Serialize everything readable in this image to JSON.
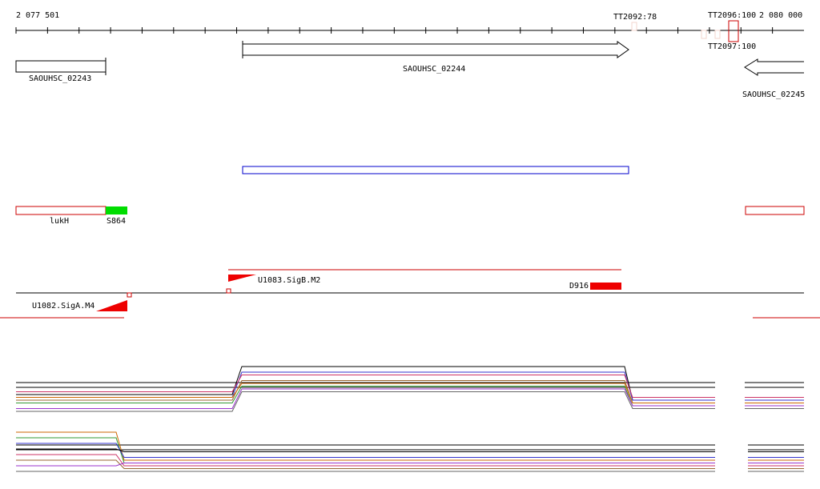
{
  "ruler": {
    "start": "2 077 501",
    "end": "2 080 000"
  },
  "terminators": [
    "TT2092:78",
    "TT2096:100",
    "TT2097:100"
  ],
  "genes": [
    "SAOUHSC_02243",
    "SAOUHSC_02244",
    "SAOUHSC_02245"
  ],
  "features": [
    "lukH",
    "S864"
  ],
  "promoters": [
    "U1083.SigB.M2",
    "D916",
    "U1082.SigA.M4"
  ],
  "expression_tracks": [
    {
      "series": [
        {
          "color": "#000000",
          "values": [
            2,
            12,
            0
          ]
        },
        {
          "color": "#3333cc",
          "values": [
            1,
            10,
            0
          ]
        },
        {
          "color": "#cc3366",
          "values": [
            3,
            9,
            1
          ]
        },
        {
          "color": "#996633",
          "values": [
            0,
            7,
            -1
          ]
        },
        {
          "color": "#339933",
          "values": [
            -1,
            5,
            -2
          ]
        },
        {
          "color": "#cc6600",
          "values": [
            1,
            6,
            -1
          ]
        },
        {
          "color": "#9933cc",
          "values": [
            -3,
            4,
            -2
          ]
        },
        {
          "color": "#666666",
          "values": [
            -4,
            3,
            -3
          ]
        }
      ]
    },
    {
      "series": [
        {
          "color": "#cc6600",
          "values": [
            10,
            0
          ]
        },
        {
          "color": "#339933",
          "values": [
            8,
            -1
          ]
        },
        {
          "color": "#3333cc",
          "values": [
            6,
            1
          ]
        },
        {
          "color": "#000000",
          "values": [
            4,
            3
          ]
        },
        {
          "color": "#cc3366",
          "values": [
            2,
            -2
          ]
        },
        {
          "color": "#996633",
          "values": [
            0,
            -3
          ]
        },
        {
          "color": "#9933cc",
          "values": [
            -2,
            -1
          ]
        },
        {
          "color": "#666666",
          "values": [
            -4,
            -4
          ]
        }
      ]
    }
  ]
}
